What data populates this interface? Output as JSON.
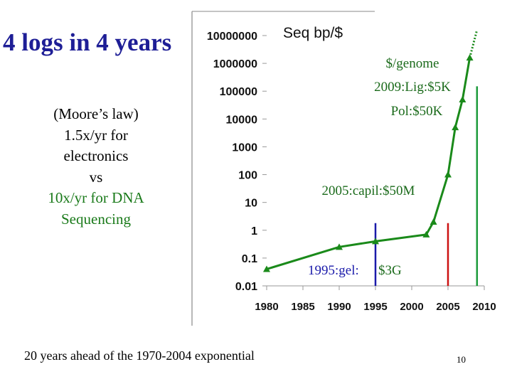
{
  "slide": {
    "title": "4 logs in 4 years",
    "note_lines": [
      {
        "text": "(Moore’s law)",
        "color": "#000000"
      },
      {
        "text": "1.5x/yr for",
        "color": "#000000"
      },
      {
        "text": "electronics",
        "color": "#000000"
      },
      {
        "text": "vs",
        "color": "#000000"
      },
      {
        "text": "10x/yr for DNA",
        "color": "#1a7a1a"
      },
      {
        "text": "Sequencing",
        "color": "#1a7a1a"
      }
    ],
    "footer": "20 years ahead of the 1970-2004 exponential",
    "page_number": "10"
  },
  "chart_data": {
    "type": "line",
    "title": "Seq bp/$",
    "y_scale": "log",
    "ylim": [
      0.01,
      10000000
    ],
    "xlim": [
      1980,
      2010
    ],
    "y_ticks": [
      "10000000",
      "1000000",
      "100000",
      "10000",
      "1000",
      "100",
      "10",
      "1",
      "0.1",
      "0.01"
    ],
    "x_ticks": [
      "1980",
      "1985",
      "1990",
      "1995",
      "2000",
      "2005",
      "2010"
    ],
    "series": [
      {
        "color": "#1a8a1a",
        "x": [
          1980,
          1990,
          1995,
          2002,
          2003,
          2005,
          2006,
          2007,
          2008
        ],
        "y": [
          0.04,
          0.25,
          0.4,
          0.7,
          2,
          100,
          5000,
          50000,
          1600000
        ]
      }
    ],
    "projection": {
      "color": "#1a8a1a",
      "x": [
        2008,
        2009
      ],
      "y": [
        1600000,
        16000000
      ]
    },
    "markers": [
      {
        "x": 1995,
        "color": "#1a1aaa",
        "y_top": 1.8
      },
      {
        "x": 2005,
        "color": "#cc1111",
        "y_top": 1.8
      },
      {
        "x": 2009,
        "color": "#1a9a3a",
        "y_top": 150000
      }
    ],
    "annotations": {
      "genome_header": "$/genome",
      "lig": "2009:Lig:$5K",
      "pol": "Pol:$50K",
      "capil": "2005:capil:$50M",
      "gel": "1995:gel:",
      "gel_cost": "$3G"
    },
    "colors": {
      "annotation": "#1a6a1a",
      "gel_label": "#1a1aaa"
    }
  }
}
